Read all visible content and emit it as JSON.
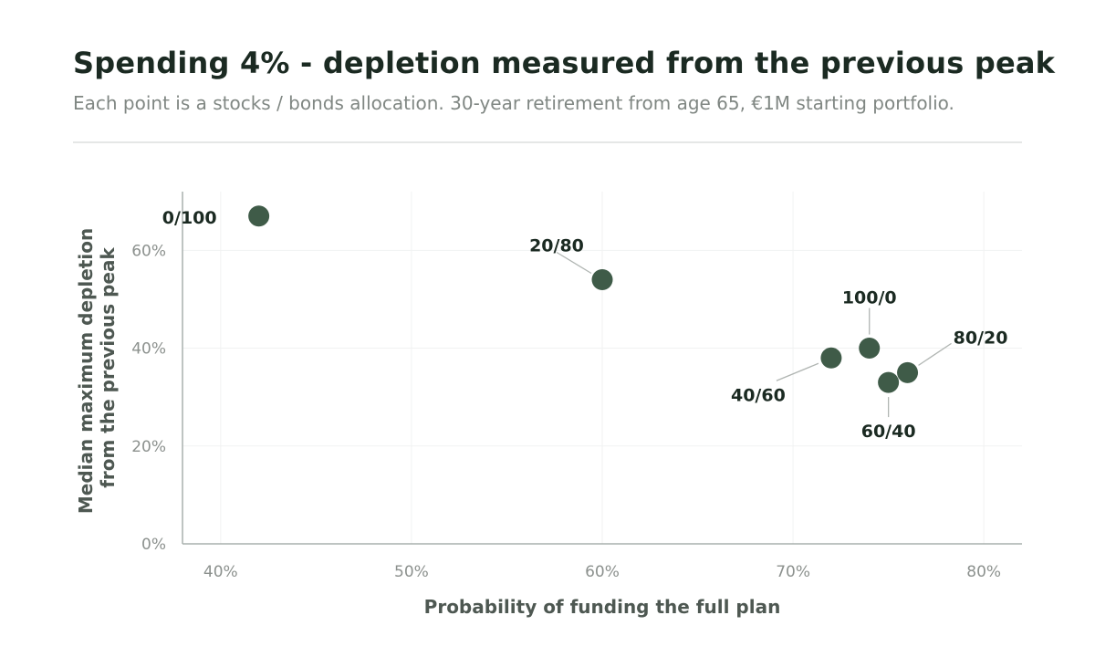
{
  "header": {
    "title": "Spending 4% - depletion measured from the previous peak",
    "subtitle": "Each point is a stocks / bonds allocation. 30-year retirement from age 65, €1M starting portfolio."
  },
  "chart_data": {
    "type": "scatter",
    "title": "Spending 4% - depletion measured from the previous peak",
    "subtitle": "Each point is a stocks / bonds allocation. 30-year retirement from age 65, €1M starting portfolio.",
    "xlabel": "Probability of funding the full plan",
    "ylabel_lines": [
      "Median maximum depletion",
      "from the previous peak"
    ],
    "xlim": [
      38,
      82
    ],
    "ylim": [
      0,
      72
    ],
    "x_ticks": [
      40,
      50,
      60,
      70,
      80
    ],
    "y_ticks": [
      0,
      20,
      40,
      60
    ],
    "x_tick_labels": [
      "40%",
      "50%",
      "60%",
      "70%",
      "80%"
    ],
    "y_tick_labels": [
      "0%",
      "20%",
      "40%",
      "60%"
    ],
    "grid": true,
    "point_color": "#3f5b48",
    "points": [
      {
        "label": "0/100",
        "x": 42,
        "y": 67
      },
      {
        "label": "20/80",
        "x": 60,
        "y": 54
      },
      {
        "label": "40/60",
        "x": 72,
        "y": 38
      },
      {
        "label": "60/40",
        "x": 75,
        "y": 33
      },
      {
        "label": "80/20",
        "x": 76,
        "y": 35
      },
      {
        "label": "100/0",
        "x": 74,
        "y": 40
      }
    ]
  }
}
